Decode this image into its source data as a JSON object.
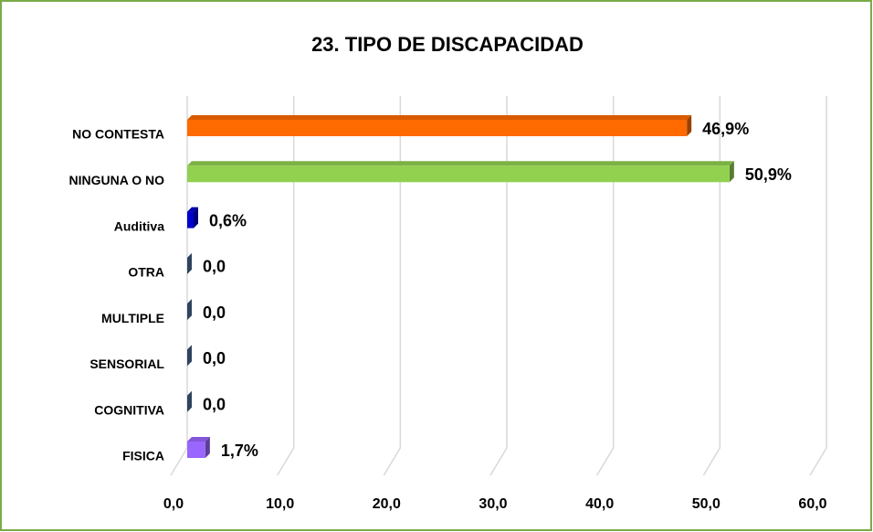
{
  "chart_data": {
    "type": "bar",
    "orientation": "horizontal",
    "title": "23. TIPO DE DISCAPACIDAD",
    "categories": [
      "NO CONTESTA",
      "NINGUNA O NO",
      "Auditiva",
      "OTRA",
      "MULTIPLE",
      "SENSORIAL",
      "COGNITIVA",
      "FISICA"
    ],
    "values": [
      46.9,
      50.9,
      0.6,
      0,
      0,
      0,
      0,
      1.7
    ],
    "value_labels": [
      "46,9%",
      "50,9%",
      "0,6%",
      "0,0",
      "0,0",
      "0,0",
      "0,0",
      "1,7%"
    ],
    "colors": [
      "#ff6a00",
      "#92d050",
      "#0000cc",
      "#4f6f9f",
      "#4f6f9f",
      "#4f6f9f",
      "#4f6f9f",
      "#9966ff"
    ],
    "xlim": [
      0,
      60
    ],
    "xticks": [
      {
        "value": 0,
        "label": "0,0"
      },
      {
        "value": 10,
        "label": "10,0"
      },
      {
        "value": 20,
        "label": "20,0"
      },
      {
        "value": 30,
        "label": "30,0"
      },
      {
        "value": 40,
        "label": "40,0"
      },
      {
        "value": 50,
        "label": "50,0"
      },
      {
        "value": 60,
        "label": "60,0"
      }
    ],
    "grid": true,
    "style": "3d"
  }
}
